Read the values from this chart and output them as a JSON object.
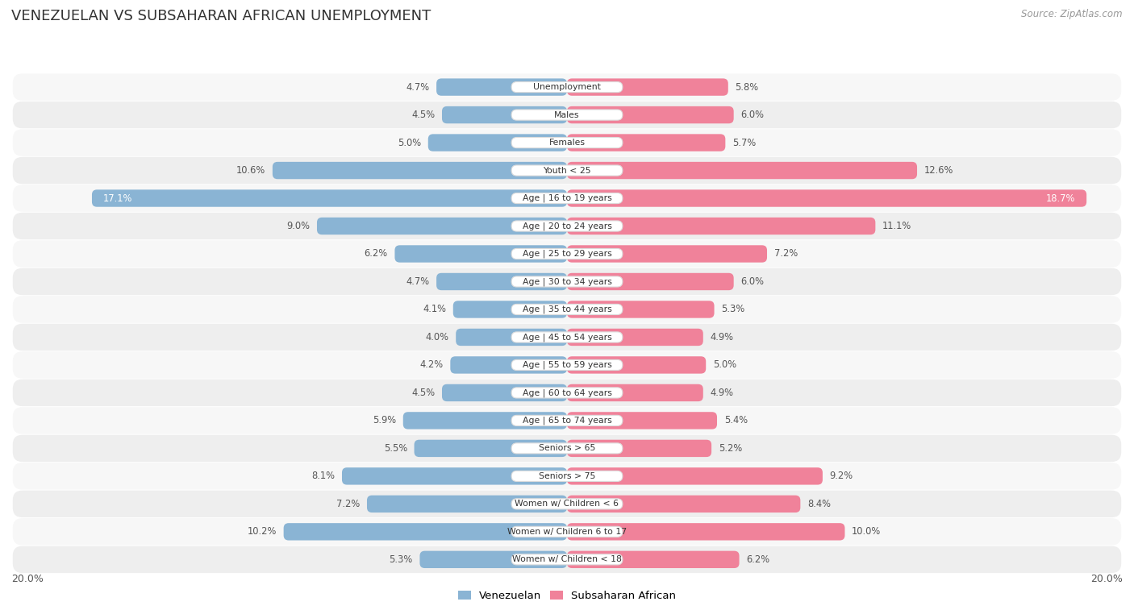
{
  "title": "VENEZUELAN VS SUBSAHARAN AFRICAN UNEMPLOYMENT",
  "source": "Source: ZipAtlas.com",
  "categories": [
    "Unemployment",
    "Males",
    "Females",
    "Youth < 25",
    "Age | 16 to 19 years",
    "Age | 20 to 24 years",
    "Age | 25 to 29 years",
    "Age | 30 to 34 years",
    "Age | 35 to 44 years",
    "Age | 45 to 54 years",
    "Age | 55 to 59 years",
    "Age | 60 to 64 years",
    "Age | 65 to 74 years",
    "Seniors > 65",
    "Seniors > 75",
    "Women w/ Children < 6",
    "Women w/ Children 6 to 17",
    "Women w/ Children < 18"
  ],
  "venezuelan": [
    4.7,
    4.5,
    5.0,
    10.6,
    17.1,
    9.0,
    6.2,
    4.7,
    4.1,
    4.0,
    4.2,
    4.5,
    5.9,
    5.5,
    8.1,
    7.2,
    10.2,
    5.3
  ],
  "subsaharan": [
    5.8,
    6.0,
    5.7,
    12.6,
    18.7,
    11.1,
    7.2,
    6.0,
    5.3,
    4.9,
    5.0,
    4.9,
    5.4,
    5.2,
    9.2,
    8.4,
    10.0,
    6.2
  ],
  "venezuelan_color": "#8ab4d4",
  "subsaharan_color": "#f0829a",
  "row_bg_light": "#f7f7f7",
  "row_bg_dark": "#eeeeee",
  "bar_height": 0.62,
  "xlim": 20.0,
  "legend_venezuelan": "Venezuelan",
  "legend_subsaharan": "Subsaharan African",
  "ven_white_threshold": 15.0,
  "sub_white_threshold": 15.0
}
